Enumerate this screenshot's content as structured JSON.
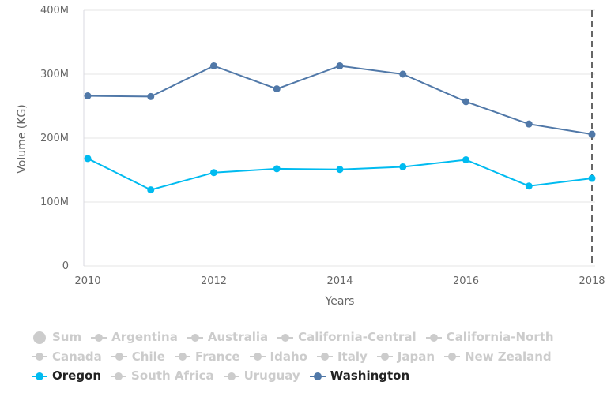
{
  "chart_data": {
    "type": "line",
    "title": "",
    "xlabel": "Years",
    "ylabel": "Volume (KG)",
    "x": [
      2010,
      2011,
      2012,
      2013,
      2014,
      2015,
      2016,
      2017,
      2018
    ],
    "xlim": [
      2010,
      2018
    ],
    "ylim": [
      0,
      400000000
    ],
    "x_ticks": [
      "2010",
      "2012",
      "2014",
      "2016",
      "2018"
    ],
    "x_tick_values": [
      2010,
      2012,
      2014,
      2016,
      2018
    ],
    "y_ticks": [
      "0",
      "100M",
      "200M",
      "300M",
      "400M"
    ],
    "y_tick_values": [
      0,
      100000000,
      200000000,
      300000000,
      400000000
    ],
    "grid": "horizontal",
    "legend_position": "bottom",
    "plot_line_at_x": 2018,
    "series": [
      {
        "name": "Washington",
        "color": "#5078A8",
        "values": [
          266000000,
          265000000,
          313000000,
          277000000,
          313000000,
          300000000,
          257000000,
          222000000,
          206000000
        ]
      },
      {
        "name": "Oregon",
        "color": "#00BBF0",
        "values": [
          168000000,
          119000000,
          146000000,
          152000000,
          151000000,
          155000000,
          166000000,
          125000000,
          137000000
        ]
      }
    ]
  },
  "legend": {
    "active_color": "#222222",
    "inactive_color": "#cccccc",
    "items": [
      {
        "label": "Sum",
        "active": false,
        "big": true,
        "color": "#cccccc"
      },
      {
        "label": "Argentina",
        "active": false,
        "color": "#cccccc"
      },
      {
        "label": "Australia",
        "active": false,
        "color": "#cccccc"
      },
      {
        "label": "California-Central",
        "active": false,
        "color": "#cccccc"
      },
      {
        "label": "California-North",
        "active": false,
        "color": "#cccccc"
      },
      {
        "label": "Canada",
        "active": false,
        "color": "#cccccc"
      },
      {
        "label": "Chile",
        "active": false,
        "color": "#cccccc"
      },
      {
        "label": "France",
        "active": false,
        "color": "#cccccc"
      },
      {
        "label": "Idaho",
        "active": false,
        "color": "#cccccc"
      },
      {
        "label": "Italy",
        "active": false,
        "color": "#cccccc"
      },
      {
        "label": "Japan",
        "active": false,
        "color": "#cccccc"
      },
      {
        "label": "New Zealand",
        "active": false,
        "color": "#cccccc"
      },
      {
        "label": "Oregon",
        "active": true,
        "color": "#00BBF0"
      },
      {
        "label": "South Africa",
        "active": false,
        "color": "#cccccc"
      },
      {
        "label": "Uruguay",
        "active": false,
        "color": "#cccccc"
      },
      {
        "label": "Washington",
        "active": true,
        "color": "#5078A8"
      }
    ]
  }
}
